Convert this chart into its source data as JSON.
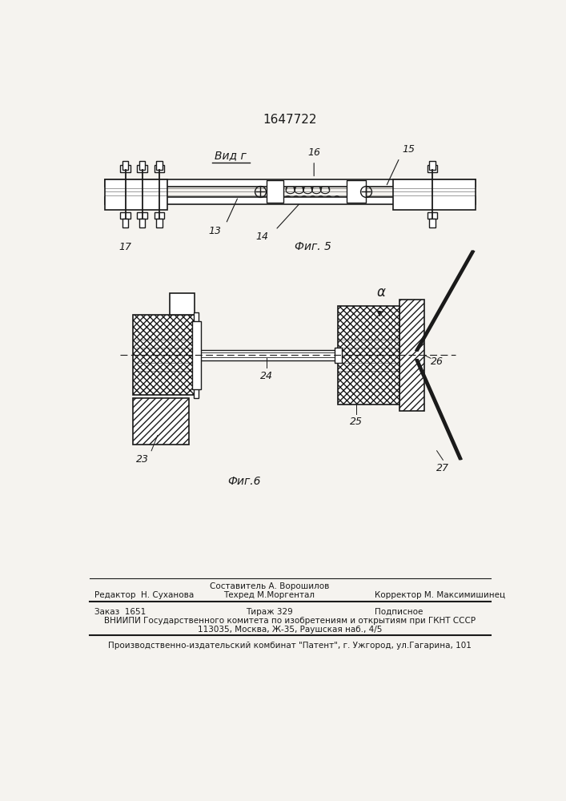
{
  "patent_number": "1647722",
  "bg_color": "#f5f3ef",
  "fig5_label": "Фиг. 5",
  "fig6_label": "Фиг.6",
  "view_label": "Вид г",
  "footer_line1_col2_top": "Составитель А. Ворошилов",
  "footer_line1_col1": "Редактор  Н. Суханова",
  "footer_line1_col2_bot": "Техред М.Моргентал",
  "footer_line1_col3": "Корректор М. Максимишинец",
  "footer_line2_col1": "Заказ  1651",
  "footer_line2_col2": "Тираж 329",
  "footer_line2_col3": "Подписное",
  "footer_line3": "ВНИИПИ Государственного комитета по изобретениям и открытиям при ГКНТ СССР",
  "footer_line4": "113035, Москва, Ж-35, Раушская наб., 4/5",
  "footer_line5": "Производственно-издательский комбинат \"Патент\", г. Ужгород, ул.Гагарина, 101",
  "line_color": "#1a1a1a",
  "text_color": "#1a1a1a"
}
